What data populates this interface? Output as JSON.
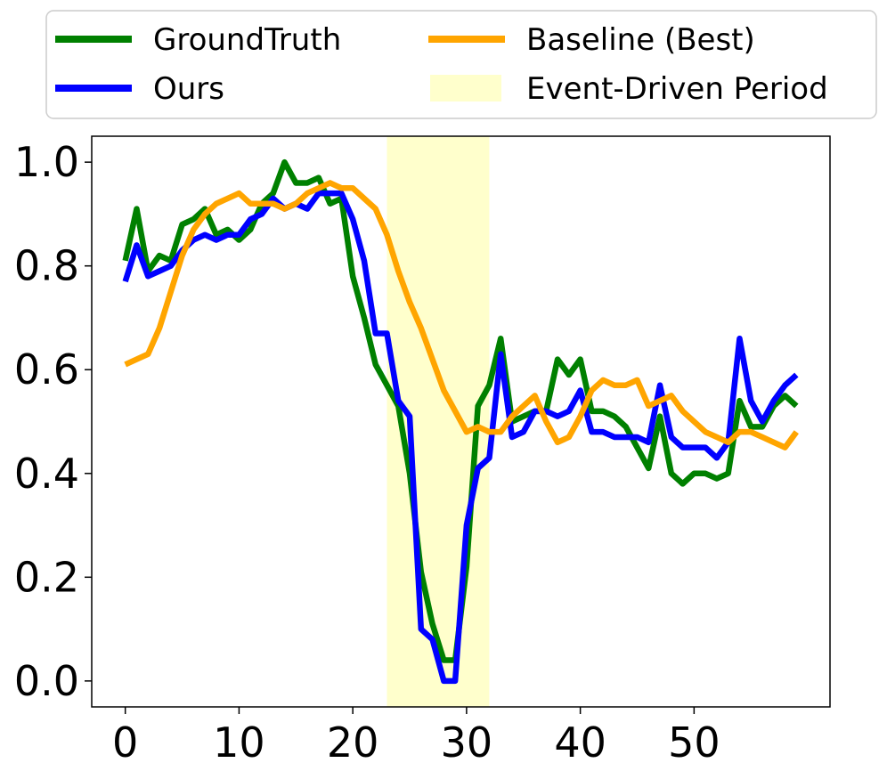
{
  "chart_data": {
    "type": "line",
    "xlim": [
      -2.95,
      61.95
    ],
    "ylim": [
      -0.05,
      1.05
    ],
    "xticks": [
      0,
      10,
      20,
      30,
      40,
      50
    ],
    "yticks": [
      0.0,
      0.2,
      0.4,
      0.6,
      0.8,
      1.0
    ],
    "xtick_labels": [
      "0",
      "10",
      "20",
      "30",
      "40",
      "50"
    ],
    "ytick_labels": [
      "0.0",
      "0.2",
      "0.4",
      "0.6",
      "0.8",
      "1.0"
    ],
    "grid": false,
    "legend_placement": "above",
    "shaded_region": {
      "label": "Event-Driven Period",
      "x_start": 23,
      "x_end": 32,
      "color": "#ffffcc"
    },
    "series": [
      {
        "name": "GroundTruth",
        "color": "#008000",
        "values": [
          0.81,
          0.91,
          0.79,
          0.82,
          0.81,
          0.88,
          0.89,
          0.91,
          0.86,
          0.87,
          0.85,
          0.87,
          0.92,
          0.94,
          1.0,
          0.96,
          0.96,
          0.97,
          0.92,
          0.93,
          0.78,
          0.7,
          0.61,
          0.57,
          0.53,
          0.4,
          0.21,
          0.11,
          0.04,
          0.04,
          0.22,
          0.53,
          0.57,
          0.66,
          0.5,
          0.51,
          0.52,
          0.52,
          0.62,
          0.59,
          0.62,
          0.52,
          0.52,
          0.51,
          0.49,
          0.45,
          0.41,
          0.51,
          0.4,
          0.38,
          0.4,
          0.4,
          0.39,
          0.4,
          0.54,
          0.49,
          0.49,
          0.53,
          0.55,
          0.53
        ]
      },
      {
        "name": "Ours",
        "color": "#0000ff",
        "values": [
          0.77,
          0.84,
          0.78,
          0.79,
          0.8,
          0.83,
          0.85,
          0.86,
          0.85,
          0.86,
          0.86,
          0.89,
          0.9,
          0.93,
          0.91,
          0.92,
          0.91,
          0.94,
          0.94,
          0.94,
          0.89,
          0.81,
          0.67,
          0.67,
          0.54,
          0.51,
          0.1,
          0.08,
          0.0,
          0.0,
          0.3,
          0.41,
          0.43,
          0.63,
          0.47,
          0.48,
          0.52,
          0.52,
          0.51,
          0.52,
          0.56,
          0.48,
          0.48,
          0.47,
          0.47,
          0.47,
          0.46,
          0.57,
          0.47,
          0.45,
          0.45,
          0.45,
          0.43,
          0.46,
          0.66,
          0.54,
          0.5,
          0.54,
          0.57,
          0.59
        ]
      },
      {
        "name": "Baseline (Best)",
        "color": "#ffa500",
        "values": [
          0.61,
          0.62,
          0.63,
          0.68,
          0.75,
          0.82,
          0.87,
          0.9,
          0.92,
          0.93,
          0.94,
          0.92,
          0.92,
          0.92,
          0.91,
          0.92,
          0.94,
          0.95,
          0.96,
          0.95,
          0.95,
          0.93,
          0.91,
          0.86,
          0.79,
          0.73,
          0.68,
          0.62,
          0.56,
          0.52,
          0.48,
          0.49,
          0.48,
          0.48,
          0.51,
          0.53,
          0.55,
          0.5,
          0.46,
          0.47,
          0.51,
          0.56,
          0.58,
          0.57,
          0.57,
          0.58,
          0.53,
          0.54,
          0.55,
          0.52,
          0.5,
          0.48,
          0.47,
          0.46,
          0.48,
          0.48,
          0.47,
          0.46,
          0.45,
          0.48
        ]
      }
    ]
  }
}
